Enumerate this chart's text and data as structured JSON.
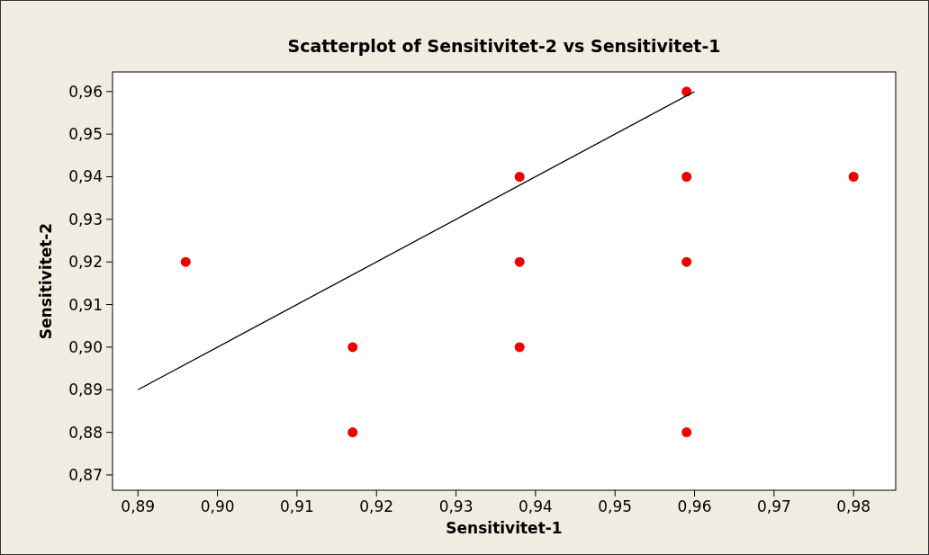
{
  "chart_data": {
    "type": "scatter",
    "title": "Scatterplot of Sensitivitet-2 vs Sensitivitet-1",
    "xlabel": "Sensitivitet-1",
    "ylabel": "Sensitivitet-2",
    "xlim": [
      0.8868,
      0.9853
    ],
    "ylim": [
      0.8664,
      0.9646
    ],
    "xticks": [
      {
        "value": 0.89,
        "label": "0,89"
      },
      {
        "value": 0.9,
        "label": "0,90"
      },
      {
        "value": 0.91,
        "label": "0,91"
      },
      {
        "value": 0.92,
        "label": "0,92"
      },
      {
        "value": 0.93,
        "label": "0,93"
      },
      {
        "value": 0.94,
        "label": "0,94"
      },
      {
        "value": 0.95,
        "label": "0,95"
      },
      {
        "value": 0.96,
        "label": "0,96"
      },
      {
        "value": 0.97,
        "label": "0,97"
      },
      {
        "value": 0.98,
        "label": "0,98"
      }
    ],
    "yticks": [
      {
        "value": 0.87,
        "label": "0,87"
      },
      {
        "value": 0.88,
        "label": "0,88"
      },
      {
        "value": 0.89,
        "label": "0,89"
      },
      {
        "value": 0.9,
        "label": "0,90"
      },
      {
        "value": 0.91,
        "label": "0,91"
      },
      {
        "value": 0.92,
        "label": "0,92"
      },
      {
        "value": 0.93,
        "label": "0,93"
      },
      {
        "value": 0.94,
        "label": "0,94"
      },
      {
        "value": 0.95,
        "label": "0,95"
      },
      {
        "value": 0.96,
        "label": "0,96"
      }
    ],
    "grid": false,
    "series": [
      {
        "marker": "circle",
        "color": "#ee0000",
        "x": [
          0.896,
          0.917,
          0.917,
          0.938,
          0.938,
          0.938,
          0.959,
          0.959,
          0.959,
          0.959,
          0.98
        ],
        "values": [
          0.92,
          0.9,
          0.88,
          0.94,
          0.92,
          0.9,
          0.96,
          0.94,
          0.92,
          0.88,
          0.94
        ]
      },
      {
        "type": "line",
        "color": "#000000",
        "x": [
          0.89,
          0.96
        ],
        "values": [
          0.89,
          0.96
        ]
      }
    ]
  }
}
